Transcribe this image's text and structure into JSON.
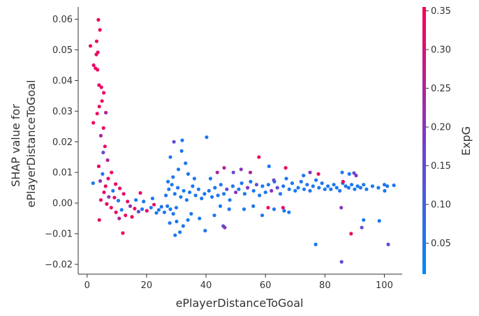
{
  "chart_data": {
    "type": "scatter",
    "title": "",
    "xlabel": "ePlayerDistanceToGoal",
    "ylabel_lines": [
      "SHAP value for",
      "ePlayerDistanceToGoal"
    ],
    "xlim": [
      -3,
      106
    ],
    "ylim": [
      -0.0232,
      0.064
    ],
    "xticks": [
      0,
      20,
      40,
      60,
      80,
      100
    ],
    "yticks": [
      -0.02,
      -0.01,
      0.0,
      0.01,
      0.02,
      0.03,
      0.04,
      0.05,
      0.06
    ],
    "ytick_labels": [
      "−0.02",
      "−0.01",
      "0.00",
      "0.01",
      "0.02",
      "0.03",
      "0.04",
      "0.05",
      "0.06"
    ],
    "grid": false,
    "colorbar": {
      "label": "ExpG",
      "range": [
        0.01,
        0.355
      ],
      "ticks": [
        0.05,
        0.1,
        0.15,
        0.2,
        0.25,
        0.3,
        0.35
      ],
      "tick_labels": [
        "0.05",
        "0.10",
        "0.15",
        "0.20",
        "0.25",
        "0.30",
        "0.35"
      ],
      "low_color": "#008afb",
      "high_color": "#ff0052"
    },
    "points": [
      {
        "x": 3.8,
        "y": 0.0598,
        "c": 0.33
      },
      {
        "x": 4.3,
        "y": 0.0565,
        "c": 0.33
      },
      {
        "x": 3.2,
        "y": 0.0528,
        "c": 0.33
      },
      {
        "x": 1.1,
        "y": 0.0513,
        "c": 0.33
      },
      {
        "x": 3.6,
        "y": 0.0492,
        "c": 0.33
      },
      {
        "x": 3.1,
        "y": 0.0485,
        "c": 0.33
      },
      {
        "x": 2.2,
        "y": 0.045,
        "c": 0.33
      },
      {
        "x": 2.8,
        "y": 0.044,
        "c": 0.33
      },
      {
        "x": 3.5,
        "y": 0.0435,
        "c": 0.33
      },
      {
        "x": 4.0,
        "y": 0.0385,
        "c": 0.33
      },
      {
        "x": 4.8,
        "y": 0.0378,
        "c": 0.33
      },
      {
        "x": 5.6,
        "y": 0.036,
        "c": 0.33
      },
      {
        "x": 5.0,
        "y": 0.0333,
        "c": 0.33
      },
      {
        "x": 4.1,
        "y": 0.0315,
        "c": 0.33
      },
      {
        "x": 3.4,
        "y": 0.0292,
        "c": 0.33
      },
      {
        "x": 6.3,
        "y": 0.0295,
        "c": 0.25
      },
      {
        "x": 2.1,
        "y": 0.0262,
        "c": 0.33
      },
      {
        "x": 5.5,
        "y": 0.0245,
        "c": 0.33
      },
      {
        "x": 4.6,
        "y": 0.022,
        "c": 0.25
      },
      {
        "x": 6.0,
        "y": 0.0185,
        "c": 0.33
      },
      {
        "x": 5.4,
        "y": 0.0165,
        "c": 0.15
      },
      {
        "x": 6.9,
        "y": 0.014,
        "c": 0.25
      },
      {
        "x": 3.9,
        "y": 0.012,
        "c": 0.33
      },
      {
        "x": 8.2,
        "y": 0.01,
        "c": 0.33
      },
      {
        "x": 5.2,
        "y": 0.0095,
        "c": 0.05
      },
      {
        "x": 7.1,
        "y": 0.008,
        "c": 0.33
      },
      {
        "x": 4.4,
        "y": 0.0072,
        "c": 0.2
      },
      {
        "x": 9.6,
        "y": 0.0062,
        "c": 0.33
      },
      {
        "x": 2.0,
        "y": 0.0065,
        "c": 0.05
      },
      {
        "x": 6.2,
        "y": 0.0055,
        "c": 0.33
      },
      {
        "x": 11.0,
        "y": 0.0048,
        "c": 0.33
      },
      {
        "x": 8.7,
        "y": 0.004,
        "c": 0.05
      },
      {
        "x": 5.7,
        "y": 0.0035,
        "c": 0.33
      },
      {
        "x": 12.3,
        "y": 0.003,
        "c": 0.33
      },
      {
        "x": 7.3,
        "y": 0.002,
        "c": 0.2
      },
      {
        "x": 9.2,
        "y": 0.0018,
        "c": 0.33
      },
      {
        "x": 4.6,
        "y": 0.001,
        "c": 0.33
      },
      {
        "x": 10.5,
        "y": 0.0008,
        "c": 0.05
      },
      {
        "x": 13.6,
        "y": 0.0005,
        "c": 0.33
      },
      {
        "x": 6.6,
        "y": -0.0003,
        "c": 0.33
      },
      {
        "x": 14.5,
        "y": -0.001,
        "c": 0.2
      },
      {
        "x": 8.1,
        "y": -0.0015,
        "c": 0.33
      },
      {
        "x": 16.0,
        "y": -0.0018,
        "c": 0.33
      },
      {
        "x": 11.6,
        "y": -0.0022,
        "c": 0.05
      },
      {
        "x": 9.7,
        "y": -0.003,
        "c": 0.33
      },
      {
        "x": 17.3,
        "y": -0.0028,
        "c": 0.15
      },
      {
        "x": 12.9,
        "y": -0.004,
        "c": 0.33
      },
      {
        "x": 15.1,
        "y": -0.0045,
        "c": 0.33
      },
      {
        "x": 10.8,
        "y": -0.005,
        "c": 0.25
      },
      {
        "x": 4.1,
        "y": -0.0055,
        "c": 0.33
      },
      {
        "x": 18.5,
        "y": -0.002,
        "c": 0.05
      },
      {
        "x": 20.1,
        "y": -0.0025,
        "c": 0.33
      },
      {
        "x": 19.0,
        "y": 0.0005,
        "c": 0.05
      },
      {
        "x": 21.5,
        "y": -0.0015,
        "c": 0.05
      },
      {
        "x": 22.5,
        "y": -0.0005,
        "c": 0.33
      },
      {
        "x": 23.3,
        "y": -0.0032,
        "c": 0.05
      },
      {
        "x": 24.1,
        "y": -0.0022,
        "c": 0.05
      },
      {
        "x": 25.0,
        "y": -0.0012,
        "c": 0.05
      },
      {
        "x": 22.0,
        "y": 0.0015,
        "c": 0.05
      },
      {
        "x": 17.9,
        "y": 0.0033,
        "c": 0.33
      },
      {
        "x": 16.4,
        "y": 0.001,
        "c": 0.05
      },
      {
        "x": 12.0,
        "y": -0.0098,
        "c": 0.33
      },
      {
        "x": 26.0,
        "y": -0.003,
        "c": 0.05
      },
      {
        "x": 27.0,
        "y": -0.001,
        "c": 0.05
      },
      {
        "x": 28.0,
        "y": -0.002,
        "c": 0.05
      },
      {
        "x": 29.0,
        "y": -0.0035,
        "c": 0.05
      },
      {
        "x": 30.0,
        "y": -0.0015,
        "c": 0.05
      },
      {
        "x": 26.5,
        "y": 0.0025,
        "c": 0.05
      },
      {
        "x": 27.5,
        "y": 0.0045,
        "c": 0.05
      },
      {
        "x": 28.5,
        "y": 0.006,
        "c": 0.05
      },
      {
        "x": 29.5,
        "y": 0.003,
        "c": 0.05
      },
      {
        "x": 30.5,
        "y": 0.005,
        "c": 0.05
      },
      {
        "x": 31.5,
        "y": 0.002,
        "c": 0.05
      },
      {
        "x": 32.5,
        "y": 0.004,
        "c": 0.05
      },
      {
        "x": 33.5,
        "y": 0.001,
        "c": 0.05
      },
      {
        "x": 34.5,
        "y": 0.0035,
        "c": 0.05
      },
      {
        "x": 35.5,
        "y": 0.0055,
        "c": 0.05
      },
      {
        "x": 36.5,
        "y": 0.0025,
        "c": 0.05
      },
      {
        "x": 37.5,
        "y": 0.0045,
        "c": 0.05
      },
      {
        "x": 38.5,
        "y": 0.0015,
        "c": 0.05
      },
      {
        "x": 39.5,
        "y": 0.003,
        "c": 0.05
      },
      {
        "x": 28.0,
        "y": 0.015,
        "c": 0.05
      },
      {
        "x": 29.2,
        "y": 0.02,
        "c": 0.15
      },
      {
        "x": 32.0,
        "y": 0.0205,
        "c": 0.05
      },
      {
        "x": 40.2,
        "y": 0.0215,
        "c": 0.05
      },
      {
        "x": 31.8,
        "y": 0.017,
        "c": 0.05
      },
      {
        "x": 33.1,
        "y": 0.013,
        "c": 0.05
      },
      {
        "x": 30.7,
        "y": 0.011,
        "c": 0.05
      },
      {
        "x": 34.0,
        "y": 0.0095,
        "c": 0.05
      },
      {
        "x": 28.9,
        "y": 0.0085,
        "c": 0.05
      },
      {
        "x": 36.1,
        "y": 0.008,
        "c": 0.05
      },
      {
        "x": 27.2,
        "y": 0.007,
        "c": 0.05
      },
      {
        "x": 33.9,
        "y": -0.0055,
        "c": 0.05
      },
      {
        "x": 29.6,
        "y": -0.0105,
        "c": 0.05
      },
      {
        "x": 31.2,
        "y": -0.0095,
        "c": 0.05
      },
      {
        "x": 32.3,
        "y": -0.0075,
        "c": 0.05
      },
      {
        "x": 39.7,
        "y": -0.009,
        "c": 0.05
      },
      {
        "x": 35.0,
        "y": -0.0035,
        "c": 0.05
      },
      {
        "x": 37.8,
        "y": -0.005,
        "c": 0.05
      },
      {
        "x": 30.1,
        "y": -0.006,
        "c": 0.05
      },
      {
        "x": 27.8,
        "y": -0.0065,
        "c": 0.05
      },
      {
        "x": 41.0,
        "y": 0.004,
        "c": 0.05
      },
      {
        "x": 42.0,
        "y": 0.002,
        "c": 0.05
      },
      {
        "x": 43.0,
        "y": 0.005,
        "c": 0.05
      },
      {
        "x": 44.0,
        "y": 0.0025,
        "c": 0.05
      },
      {
        "x": 45.0,
        "y": 0.006,
        "c": 0.05
      },
      {
        "x": 46.0,
        "y": 0.003,
        "c": 0.05
      },
      {
        "x": 47.0,
        "y": 0.0045,
        "c": 0.15
      },
      {
        "x": 48.0,
        "y": 0.001,
        "c": 0.05
      },
      {
        "x": 49.0,
        "y": 0.0055,
        "c": 0.05
      },
      {
        "x": 50.0,
        "y": 0.0035,
        "c": 0.2
      },
      {
        "x": 43.8,
        "y": 0.01,
        "c": 0.25
      },
      {
        "x": 46.1,
        "y": 0.0115,
        "c": 0.25
      },
      {
        "x": 41.5,
        "y": 0.008,
        "c": 0.05
      },
      {
        "x": 44.8,
        "y": -0.001,
        "c": 0.05
      },
      {
        "x": 47.8,
        "y": -0.002,
        "c": 0.05
      },
      {
        "x": 45.8,
        "y": -0.0075,
        "c": 0.15
      },
      {
        "x": 46.3,
        "y": -0.008,
        "c": 0.2
      },
      {
        "x": 42.8,
        "y": -0.004,
        "c": 0.05
      },
      {
        "x": 51.0,
        "y": 0.0045,
        "c": 0.05
      },
      {
        "x": 52.0,
        "y": 0.0065,
        "c": 0.05
      },
      {
        "x": 53.0,
        "y": 0.003,
        "c": 0.05
      },
      {
        "x": 54.0,
        "y": 0.005,
        "c": 0.2
      },
      {
        "x": 55.0,
        "y": 0.007,
        "c": 0.05
      },
      {
        "x": 56.0,
        "y": 0.004,
        "c": 0.05
      },
      {
        "x": 57.0,
        "y": 0.006,
        "c": 0.15
      },
      {
        "x": 58.0,
        "y": 0.0025,
        "c": 0.05
      },
      {
        "x": 59.0,
        "y": 0.0055,
        "c": 0.05
      },
      {
        "x": 60.0,
        "y": 0.0035,
        "c": 0.05
      },
      {
        "x": 51.8,
        "y": 0.011,
        "c": 0.2
      },
      {
        "x": 49.2,
        "y": 0.01,
        "c": 0.15
      },
      {
        "x": 54.9,
        "y": 0.01,
        "c": 0.25
      },
      {
        "x": 57.8,
        "y": 0.015,
        "c": 0.33
      },
      {
        "x": 52.8,
        "y": -0.002,
        "c": 0.05
      },
      {
        "x": 55.9,
        "y": -0.001,
        "c": 0.05
      },
      {
        "x": 58.9,
        "y": -0.004,
        "c": 0.05
      },
      {
        "x": 61.0,
        "y": 0.006,
        "c": 0.05
      },
      {
        "x": 62.0,
        "y": 0.004,
        "c": 0.2
      },
      {
        "x": 63.0,
        "y": 0.007,
        "c": 0.05
      },
      {
        "x": 64.0,
        "y": 0.005,
        "c": 0.15
      },
      {
        "x": 65.0,
        "y": 0.003,
        "c": 0.05
      },
      {
        "x": 66.0,
        "y": 0.0055,
        "c": 0.05
      },
      {
        "x": 67.0,
        "y": 0.008,
        "c": 0.05
      },
      {
        "x": 68.0,
        "y": 0.0045,
        "c": 0.05
      },
      {
        "x": 69.0,
        "y": 0.0065,
        "c": 0.05
      },
      {
        "x": 70.0,
        "y": 0.004,
        "c": 0.05
      },
      {
        "x": 61.2,
        "y": 0.012,
        "c": 0.05
      },
      {
        "x": 62.8,
        "y": 0.0075,
        "c": 0.15
      },
      {
        "x": 66.8,
        "y": 0.0115,
        "c": 0.33
      },
      {
        "x": 60.9,
        "y": -0.0015,
        "c": 0.33
      },
      {
        "x": 62.9,
        "y": -0.002,
        "c": 0.05
      },
      {
        "x": 65.9,
        "y": -0.0015,
        "c": 0.33
      },
      {
        "x": 66.3,
        "y": -0.0025,
        "c": 0.05
      },
      {
        "x": 67.9,
        "y": -0.003,
        "c": 0.05
      },
      {
        "x": 71.0,
        "y": 0.005,
        "c": 0.05
      },
      {
        "x": 72.0,
        "y": 0.007,
        "c": 0.05
      },
      {
        "x": 73.0,
        "y": 0.0045,
        "c": 0.05
      },
      {
        "x": 74.0,
        "y": 0.006,
        "c": 0.05
      },
      {
        "x": 75.0,
        "y": 0.004,
        "c": 0.05
      },
      {
        "x": 76.0,
        "y": 0.0055,
        "c": 0.05
      },
      {
        "x": 77.0,
        "y": 0.0075,
        "c": 0.05
      },
      {
        "x": 78.0,
        "y": 0.005,
        "c": 0.05
      },
      {
        "x": 79.0,
        "y": 0.0065,
        "c": 0.05
      },
      {
        "x": 80.0,
        "y": 0.0045,
        "c": 0.05
      },
      {
        "x": 75.0,
        "y": 0.01,
        "c": 0.2
      },
      {
        "x": 77.8,
        "y": 0.0095,
        "c": 0.33
      },
      {
        "x": 72.8,
        "y": 0.009,
        "c": 0.05
      },
      {
        "x": 76.9,
        "y": -0.0135,
        "c": 0.05
      },
      {
        "x": 81.0,
        "y": 0.0055,
        "c": 0.05
      },
      {
        "x": 82.0,
        "y": 0.0045,
        "c": 0.05
      },
      {
        "x": 83.0,
        "y": 0.006,
        "c": 0.05
      },
      {
        "x": 84.0,
        "y": 0.005,
        "c": 0.05
      },
      {
        "x": 85.0,
        "y": 0.004,
        "c": 0.05
      },
      {
        "x": 86.0,
        "y": 0.0065,
        "c": 0.05
      },
      {
        "x": 87.0,
        "y": 0.0055,
        "c": 0.05
      },
      {
        "x": 88.0,
        "y": 0.005,
        "c": 0.05
      },
      {
        "x": 89.0,
        "y": 0.006,
        "c": 0.05
      },
      {
        "x": 90.0,
        "y": 0.0045,
        "c": 0.05
      },
      {
        "x": 85.8,
        "y": 0.01,
        "c": 0.05
      },
      {
        "x": 88.2,
        "y": 0.0095,
        "c": 0.05
      },
      {
        "x": 89.8,
        "y": 0.0098,
        "c": 0.15
      },
      {
        "x": 90.5,
        "y": 0.009,
        "c": 0.2
      },
      {
        "x": 86.1,
        "y": 0.007,
        "c": 0.33
      },
      {
        "x": 85.5,
        "y": -0.0015,
        "c": 0.2
      },
      {
        "x": 88.8,
        "y": -0.01,
        "c": 0.33
      },
      {
        "x": 85.6,
        "y": -0.0192,
        "c": 0.15
      },
      {
        "x": 91.0,
        "y": 0.0055,
        "c": 0.05
      },
      {
        "x": 92.0,
        "y": 0.005,
        "c": 0.05
      },
      {
        "x": 93.0,
        "y": 0.006,
        "c": 0.05
      },
      {
        "x": 94.0,
        "y": 0.0045,
        "c": 0.05
      },
      {
        "x": 96.0,
        "y": 0.0055,
        "c": 0.05
      },
      {
        "x": 98.0,
        "y": 0.005,
        "c": 0.05
      },
      {
        "x": 100.0,
        "y": 0.006,
        "c": 0.05
      },
      {
        "x": 101.0,
        "y": 0.0055,
        "c": 0.05
      },
      {
        "x": 103.2,
        "y": 0.0058,
        "c": 0.05
      },
      {
        "x": 100.1,
        "y": 0.004,
        "c": 0.05
      },
      {
        "x": 92.4,
        "y": -0.008,
        "c": 0.15
      },
      {
        "x": 93.0,
        "y": -0.0055,
        "c": 0.05
      },
      {
        "x": 98.3,
        "y": -0.0058,
        "c": 0.05
      },
      {
        "x": 101.3,
        "y": -0.0135,
        "c": 0.15
      }
    ]
  }
}
